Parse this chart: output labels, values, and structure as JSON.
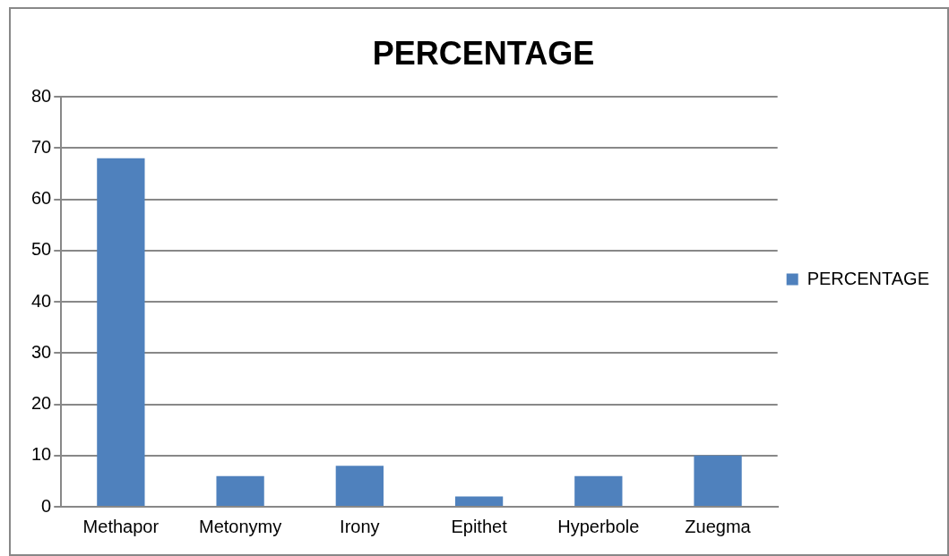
{
  "chart_data": {
    "type": "bar",
    "title": "PERCENTAGE",
    "categories": [
      "Methapor",
      "Metonymy",
      "Irony",
      "Epithet",
      "Hyperbole",
      "Zuegma"
    ],
    "series": [
      {
        "name": "PERCENTAGE",
        "color": "#4f81bd",
        "values": [
          68,
          6,
          8,
          2,
          6,
          10
        ]
      }
    ],
    "ylim": [
      0,
      80
    ],
    "yticks": [
      0,
      10,
      20,
      30,
      40,
      50,
      60,
      70,
      80
    ],
    "grid": "y",
    "legend": "right"
  }
}
